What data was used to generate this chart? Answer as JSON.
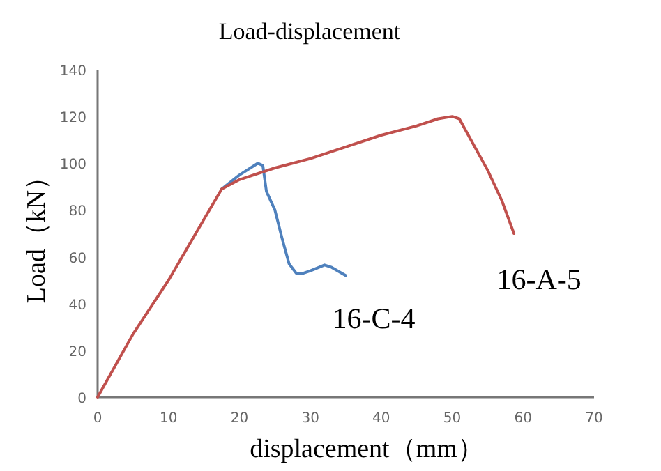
{
  "chart_data": {
    "type": "line",
    "title": "Load-displacement",
    "xlabel": "displacement（mm）",
    "ylabel": "Load（kN）",
    "xlim": [
      0,
      70
    ],
    "xticks": [
      0,
      10,
      20,
      30,
      40,
      50,
      60,
      70
    ],
    "ylim": [
      0,
      140
    ],
    "yticks": [
      0,
      20,
      40,
      60,
      80,
      100,
      120,
      140
    ],
    "grid": false,
    "line_style": "solid",
    "marker": "none",
    "series": [
      {
        "name": "16-A-5",
        "color": "#c0504d",
        "x": [
          0,
          5,
          10,
          15,
          17.5,
          20,
          25,
          30,
          35,
          40,
          45,
          48,
          50,
          51,
          53,
          55,
          57,
          58.7
        ],
        "values": [
          0,
          27,
          50,
          76,
          89,
          93,
          98,
          102,
          107,
          112,
          116,
          119,
          120,
          119,
          108,
          97,
          84,
          70
        ]
      },
      {
        "name": "16-C-4",
        "color": "#4f81bd",
        "x": [
          17.5,
          20,
          22.6,
          23.3,
          23.8,
          25,
          26,
          27,
          28,
          29,
          30,
          32,
          33,
          35
        ],
        "values": [
          89,
          95,
          100,
          99,
          88,
          80,
          68,
          57,
          53,
          53,
          54,
          56.5,
          55.5,
          52
        ]
      }
    ]
  }
}
